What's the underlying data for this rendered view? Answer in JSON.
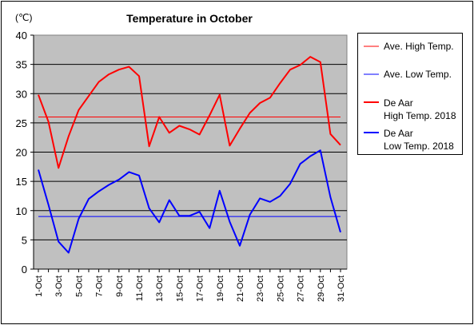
{
  "chart_data": {
    "type": "line",
    "title": "Temperature in October",
    "unit_label": "(℃)",
    "ylim": [
      0,
      40
    ],
    "yticks": [
      0,
      5,
      10,
      15,
      20,
      25,
      30,
      35,
      40
    ],
    "grid": true,
    "legend_position": "right",
    "plot_background": "#c0c0c0",
    "x_tick_labels": [
      "1-Oct",
      "3-Oct",
      "5-Oct",
      "7-Oct",
      "9-Oct",
      "11-Oct",
      "13-Oct",
      "15-Oct",
      "17-Oct",
      "19-Oct",
      "21-Oct",
      "23-Oct",
      "25-Oct",
      "27-Oct",
      "29-Oct",
      "31-Oct"
    ],
    "x": [
      1,
      2,
      3,
      4,
      5,
      6,
      7,
      8,
      9,
      10,
      11,
      12,
      13,
      14,
      15,
      16,
      17,
      18,
      19,
      20,
      21,
      22,
      23,
      24,
      25,
      26,
      27,
      28,
      29,
      30,
      31
    ],
    "series": [
      {
        "name": "Ave. High Temp.",
        "color": "#ff0000",
        "style": "thin",
        "values": [
          26,
          26,
          26,
          26,
          26,
          26,
          26,
          26,
          26,
          26,
          26,
          26,
          26,
          26,
          26,
          26,
          26,
          26,
          26,
          26,
          26,
          26,
          26,
          26,
          26,
          26,
          26,
          26,
          26,
          26,
          26
        ]
      },
      {
        "name": "Ave. Low Temp.",
        "color": "#0000ff",
        "style": "thin",
        "values": [
          9,
          9,
          9,
          9,
          9,
          9,
          9,
          9,
          9,
          9,
          9,
          9,
          9,
          9,
          9,
          9,
          9,
          9,
          9,
          9,
          9,
          9,
          9,
          9,
          9,
          9,
          9,
          9,
          9,
          9,
          9
        ]
      },
      {
        "name": "De Aar High Temp. 2018",
        "legend_lines": [
          "De Aar",
          "High Temp. 2018"
        ],
        "color": "#ff0000",
        "style": "thick",
        "values": [
          29.8,
          25.2,
          17.3,
          22.7,
          27.2,
          29.6,
          32,
          33.3,
          34.1,
          34.6,
          33,
          21,
          26,
          23.3,
          24.5,
          23.9,
          23,
          26.3,
          29.8,
          21.1,
          24,
          26.7,
          28.4,
          29.3,
          31.8,
          34.1,
          34.9,
          36.3,
          35.4,
          23.1,
          21.2
        ]
      },
      {
        "name": "De Aar Low Temp. 2018",
        "legend_lines": [
          "De Aar",
          "Low Temp. 2018"
        ],
        "color": "#0000ff",
        "style": "thick",
        "values": [
          17,
          11,
          4.7,
          2.8,
          8.6,
          12,
          13.3,
          14.4,
          15.3,
          16.6,
          16,
          10.4,
          8,
          11.8,
          9.1,
          9.1,
          9.8,
          7,
          13.4,
          8.1,
          4,
          9.3,
          12.1,
          11.5,
          12.5,
          14.6,
          18,
          19.3,
          20.3,
          12.3,
          6.3
        ]
      }
    ]
  }
}
